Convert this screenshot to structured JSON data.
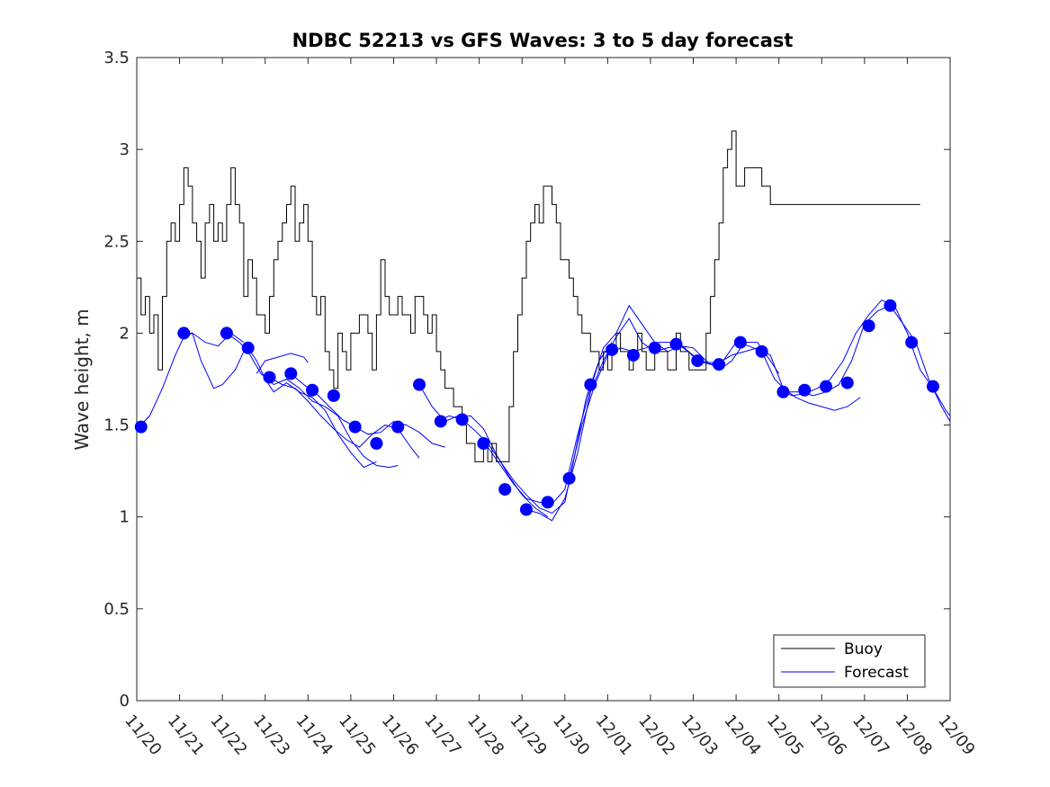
{
  "chart_data": {
    "type": "line",
    "title": "NDBC 52213 vs GFS Waves: 3 to 5 day forecast",
    "xlabel": "",
    "ylabel": "Wave height, m",
    "xlim": [
      0,
      19
    ],
    "ylim": [
      0,
      3.5
    ],
    "x_ticks": [
      "11/20",
      "11/21",
      "11/22",
      "11/23",
      "11/24",
      "11/25",
      "11/26",
      "11/27",
      "11/28",
      "11/29",
      "11/30",
      "12/01",
      "12/02",
      "12/03",
      "12/04",
      "12/05",
      "12/06",
      "12/07",
      "12/08",
      "12/09"
    ],
    "y_ticks": [
      0,
      0.5,
      1,
      1.5,
      2,
      2.5,
      3,
      3.5
    ],
    "y_tick_labels": [
      "0",
      "0.5",
      "1",
      "1.5",
      "2",
      "2.5",
      "3",
      "3.5"
    ],
    "grid": false,
    "legend": {
      "position": "bottom-right",
      "entries": [
        {
          "name": "Buoy",
          "color": "#000000"
        },
        {
          "name": "Forecast",
          "color": "#0000ff"
        }
      ]
    },
    "series": [
      {
        "name": "Buoy",
        "color": "#000000",
        "x": [
          0,
          0.1,
          0.2,
          0.3,
          0.4,
          0.5,
          0.6,
          0.7,
          0.8,
          0.9,
          1.0,
          1.1,
          1.2,
          1.3,
          1.4,
          1.5,
          1.6,
          1.7,
          1.8,
          1.9,
          2.0,
          2.1,
          2.2,
          2.3,
          2.4,
          2.5,
          2.6,
          2.7,
          2.8,
          2.9,
          3.0,
          3.1,
          3.2,
          3.3,
          3.4,
          3.5,
          3.6,
          3.7,
          3.8,
          3.9,
          4.0,
          4.1,
          4.2,
          4.3,
          4.4,
          4.5,
          4.6,
          4.7,
          4.8,
          4.9,
          5.0,
          5.1,
          5.2,
          5.3,
          5.4,
          5.5,
          5.6,
          5.7,
          5.8,
          5.9,
          6.0,
          6.1,
          6.2,
          6.3,
          6.4,
          6.5,
          6.6,
          6.7,
          6.8,
          6.9,
          7.0,
          7.1,
          7.2,
          7.3,
          7.4,
          7.5,
          7.6,
          7.7,
          7.8,
          7.9,
          8.0,
          8.1,
          8.2,
          8.3,
          8.4,
          8.5,
          8.6,
          8.7,
          8.8,
          8.9,
          9.0,
          9.1,
          9.2,
          9.3,
          9.4,
          9.5,
          9.6,
          9.7,
          9.8,
          9.9,
          10.0,
          10.1,
          10.2,
          10.3,
          10.4,
          10.5,
          10.6,
          10.7,
          10.8,
          10.9,
          11.0,
          11.1,
          11.2,
          11.3,
          11.4,
          11.5,
          11.6,
          11.7,
          11.8,
          11.9,
          12.0,
          12.1,
          12.2,
          12.3,
          12.4,
          12.5,
          12.6,
          12.7,
          12.8,
          12.9,
          13.0,
          13.1,
          13.2,
          13.3,
          13.4,
          13.5,
          13.6,
          13.7,
          13.8,
          13.9,
          14.0,
          14.1,
          14.2,
          14.3,
          14.4,
          14.5,
          14.6,
          14.7,
          14.8,
          14.9,
          15.0,
          15.1,
          15.2,
          15.3,
          15.4,
          15.5,
          15.6,
          15.7,
          15.8,
          15.9,
          16.0,
          16.1,
          16.2,
          16.3,
          16.4,
          16.5,
          16.6,
          16.7,
          16.8,
          16.9,
          17.0,
          17.1,
          17.2,
          17.3,
          17.4,
          17.5,
          17.6,
          17.7,
          17.8,
          17.9,
          18.0,
          18.1,
          18.2,
          18.3
        ],
        "values": [
          2.3,
          2.1,
          2.2,
          2.0,
          2.1,
          1.8,
          2.2,
          2.5,
          2.6,
          2.5,
          2.7,
          2.9,
          2.8,
          2.6,
          2.5,
          2.3,
          2.6,
          2.7,
          2.5,
          2.6,
          2.5,
          2.7,
          2.9,
          2.7,
          2.6,
          2.2,
          2.4,
          2.3,
          2.1,
          2.1,
          2.0,
          2.2,
          2.4,
          2.5,
          2.6,
          2.7,
          2.8,
          2.5,
          2.6,
          2.7,
          2.5,
          2.2,
          2.1,
          2.2,
          1.9,
          1.8,
          1.7,
          2.0,
          1.9,
          1.8,
          2.0,
          2.0,
          2.1,
          2.1,
          2.0,
          1.8,
          2.1,
          2.4,
          2.2,
          2.1,
          2.1,
          2.2,
          2.1,
          2.1,
          2.0,
          2.2,
          2.2,
          2.1,
          2.0,
          2.1,
          1.9,
          1.8,
          1.7,
          1.7,
          1.6,
          1.6,
          1.5,
          1.4,
          1.4,
          1.3,
          1.3,
          1.4,
          1.3,
          1.4,
          1.3,
          1.3,
          1.3,
          1.6,
          1.9,
          2.1,
          2.3,
          2.5,
          2.6,
          2.7,
          2.6,
          2.8,
          2.8,
          2.7,
          2.6,
          2.4,
          2.4,
          2.3,
          2.2,
          2.1,
          2.0,
          2.0,
          1.9,
          1.9,
          1.8,
          1.9,
          1.8,
          1.9,
          2.0,
          1.9,
          1.9,
          1.8,
          1.9,
          2.0,
          1.9,
          1.8,
          1.8,
          1.9,
          1.9,
          1.9,
          1.8,
          1.8,
          2.0,
          1.9,
          1.9,
          1.8,
          1.8,
          1.8,
          1.8,
          2.0,
          2.2,
          2.4,
          2.6,
          2.9,
          3.0,
          3.1,
          2.8,
          2.8,
          2.9,
          2.9,
          2.9,
          2.9,
          2.8,
          2.8,
          2.7,
          2.7,
          2.7,
          2.7,
          2.7,
          2.7,
          2.7,
          2.7,
          2.7,
          2.7,
          2.7,
          2.7,
          2.7,
          2.7,
          2.7,
          2.7,
          2.7,
          2.7,
          2.7,
          2.7,
          2.7,
          2.7,
          2.7,
          2.7,
          2.7,
          2.7,
          2.7,
          2.7,
          2.7,
          2.7,
          2.7,
          2.7,
          2.7,
          2.7,
          2.7,
          2.7
        ]
      }
    ],
    "forecast_lines": [
      {
        "x": [
          0.05,
          0.3,
          0.6,
          0.9,
          1.1,
          1.3,
          1.6,
          1.9,
          2.2,
          2.5
        ],
        "values": [
          1.49,
          1.55,
          1.7,
          1.88,
          1.98,
          2.0,
          1.95,
          1.93,
          2.0,
          1.95
        ]
      },
      {
        "x": [
          1.1,
          1.3,
          1.5,
          1.8,
          2.0,
          2.3,
          2.5
        ],
        "values": [
          2.0,
          2.0,
          1.85,
          1.7,
          1.72,
          1.8,
          1.9
        ]
      },
      {
        "x": [
          2.1,
          2.4,
          2.6,
          2.9,
          3.2,
          3.5,
          3.8,
          4.1,
          4.4,
          4.7,
          5.0,
          5.3,
          5.6,
          5.9,
          6.1
        ],
        "values": [
          2.0,
          1.95,
          1.9,
          1.78,
          1.72,
          1.75,
          1.7,
          1.63,
          1.6,
          1.55,
          1.42,
          1.33,
          1.28,
          1.27,
          1.28
        ]
      },
      {
        "x": [
          2.6,
          2.8,
          3.0,
          3.2,
          3.5,
          3.8,
          4.1,
          4.4,
          4.7,
          5.0,
          5.3,
          5.6
        ],
        "values": [
          1.92,
          1.85,
          1.75,
          1.68,
          1.73,
          1.68,
          1.65,
          1.58,
          1.45,
          1.35,
          1.27,
          1.3
        ]
      },
      {
        "x": [
          3.1,
          3.4,
          3.7,
          4.0,
          4.3,
          4.6,
          4.9,
          5.2,
          5.5,
          5.8,
          6.1,
          6.4,
          6.6
        ],
        "values": [
          1.76,
          1.72,
          1.7,
          1.63,
          1.55,
          1.48,
          1.42,
          1.38,
          1.45,
          1.5,
          1.48,
          1.38,
          1.32
        ]
      },
      {
        "x": [
          3.6,
          3.9,
          4.2,
          4.5,
          4.8,
          5.1,
          5.4,
          5.7,
          6.0,
          6.3,
          6.6,
          6.9,
          7.2
        ],
        "values": [
          1.78,
          1.72,
          1.67,
          1.6,
          1.53,
          1.49,
          1.45,
          1.46,
          1.52,
          1.5,
          1.46,
          1.4,
          1.38
        ]
      },
      {
        "x": [
          2.8,
          3.0,
          3.3,
          3.6,
          3.9,
          4.0
        ],
        "values": [
          1.78,
          1.85,
          1.87,
          1.89,
          1.87,
          1.84
        ]
      },
      {
        "x": [
          6.6,
          6.9,
          7.2,
          7.5,
          7.8,
          8.1,
          8.4,
          8.7,
          9.0,
          9.3,
          9.6
        ],
        "values": [
          1.72,
          1.6,
          1.52,
          1.55,
          1.55,
          1.48,
          1.34,
          1.22,
          1.12,
          1.05,
          1.0
        ]
      },
      {
        "x": [
          7.0,
          7.3,
          7.6,
          7.9,
          8.2,
          8.5,
          8.8,
          9.1,
          9.4,
          9.7,
          10.0,
          10.2,
          10.5,
          10.8,
          11.1
        ],
        "values": [
          1.52,
          1.55,
          1.53,
          1.47,
          1.4,
          1.3,
          1.2,
          1.12,
          1.05,
          1.02,
          1.08,
          1.3,
          1.65,
          1.85,
          1.95
        ]
      },
      {
        "x": [
          8.2,
          8.5,
          8.8,
          9.1,
          9.4,
          9.7,
          10.0,
          10.3,
          10.6,
          10.9,
          11.2,
          11.5,
          11.8,
          12.1,
          12.4,
          12.7,
          13.0,
          13.3,
          13.6,
          13.9,
          14.2,
          14.5,
          14.8,
          15.0
        ],
        "values": [
          1.38,
          1.28,
          1.18,
          1.1,
          1.08,
          1.07,
          1.15,
          1.45,
          1.7,
          1.92,
          2.0,
          2.15,
          2.05,
          1.95,
          1.9,
          1.93,
          1.92,
          1.85,
          1.8,
          1.85,
          1.95,
          1.95,
          1.85,
          1.78
        ]
      },
      {
        "x": [
          9.1,
          9.4,
          9.7,
          10.0,
          10.3,
          10.6,
          10.9,
          11.2,
          11.5,
          11.8,
          12.1,
          12.4,
          12.7,
          13.0,
          13.3,
          13.6,
          13.9,
          14.2,
          14.5,
          14.8,
          15.1,
          15.4,
          15.7,
          16.0,
          16.3,
          16.6,
          16.9
        ],
        "values": [
          1.04,
          1.02,
          0.98,
          1.1,
          1.35,
          1.68,
          1.85,
          1.98,
          2.08,
          1.95,
          1.9,
          1.92,
          1.93,
          1.88,
          1.84,
          1.84,
          1.88,
          1.9,
          1.92,
          1.88,
          1.7,
          1.65,
          1.62,
          1.6,
          1.58,
          1.6,
          1.65
        ]
      },
      {
        "x": [
          10.1,
          10.4,
          10.7,
          11.0,
          11.3,
          11.6,
          11.9,
          12.2,
          12.5,
          12.8,
          13.1,
          13.4,
          13.7,
          14.0,
          14.3,
          14.6,
          14.9,
          15.2,
          15.5,
          15.8,
          16.1,
          16.4,
          16.7,
          17.0,
          17.3,
          17.6,
          17.9,
          18.2,
          18.5,
          18.8,
          19.0
        ],
        "values": [
          1.21,
          1.5,
          1.72,
          1.88,
          1.92,
          1.9,
          1.92,
          1.95,
          1.95,
          1.92,
          1.85,
          1.83,
          1.85,
          1.95,
          1.93,
          1.9,
          1.75,
          1.68,
          1.68,
          1.66,
          1.68,
          1.72,
          1.85,
          2.05,
          2.12,
          2.15,
          2.05,
          1.95,
          1.75,
          1.6,
          1.52
        ]
      },
      {
        "x": [
          15.0,
          15.3,
          15.6,
          15.9,
          16.2,
          16.5,
          16.8,
          17.1,
          17.4,
          17.7,
          18.0,
          18.3,
          18.6,
          18.9,
          19.0
        ],
        "values": [
          1.7,
          1.66,
          1.67,
          1.7,
          1.75,
          1.85,
          2.0,
          2.1,
          2.18,
          2.15,
          2.0,
          1.8,
          1.7,
          1.58,
          1.55
        ]
      }
    ],
    "forecast_markers": {
      "x": [
        0.1,
        1.1,
        2.1,
        2.6,
        3.1,
        3.6,
        4.1,
        4.6,
        5.1,
        5.6,
        6.1,
        6.6,
        7.1,
        7.6,
        8.1,
        8.6,
        9.1,
        9.6,
        10.1,
        10.6,
        11.1,
        11.6,
        12.1,
        12.6,
        13.1,
        13.6,
        14.1,
        14.6,
        15.1,
        15.6,
        16.1,
        16.6,
        17.1,
        17.6,
        18.1,
        18.6
      ],
      "values": [
        1.49,
        2.0,
        2.0,
        1.92,
        1.76,
        1.78,
        1.69,
        1.66,
        1.49,
        1.4,
        1.49,
        1.72,
        1.52,
        1.53,
        1.4,
        1.15,
        1.04,
        1.08,
        1.21,
        1.72,
        1.91,
        1.88,
        1.92,
        1.94,
        1.85,
        1.83,
        1.95,
        1.9,
        1.68,
        1.69,
        1.71,
        1.73,
        2.04,
        2.15,
        1.95,
        1.71
      ]
    }
  }
}
